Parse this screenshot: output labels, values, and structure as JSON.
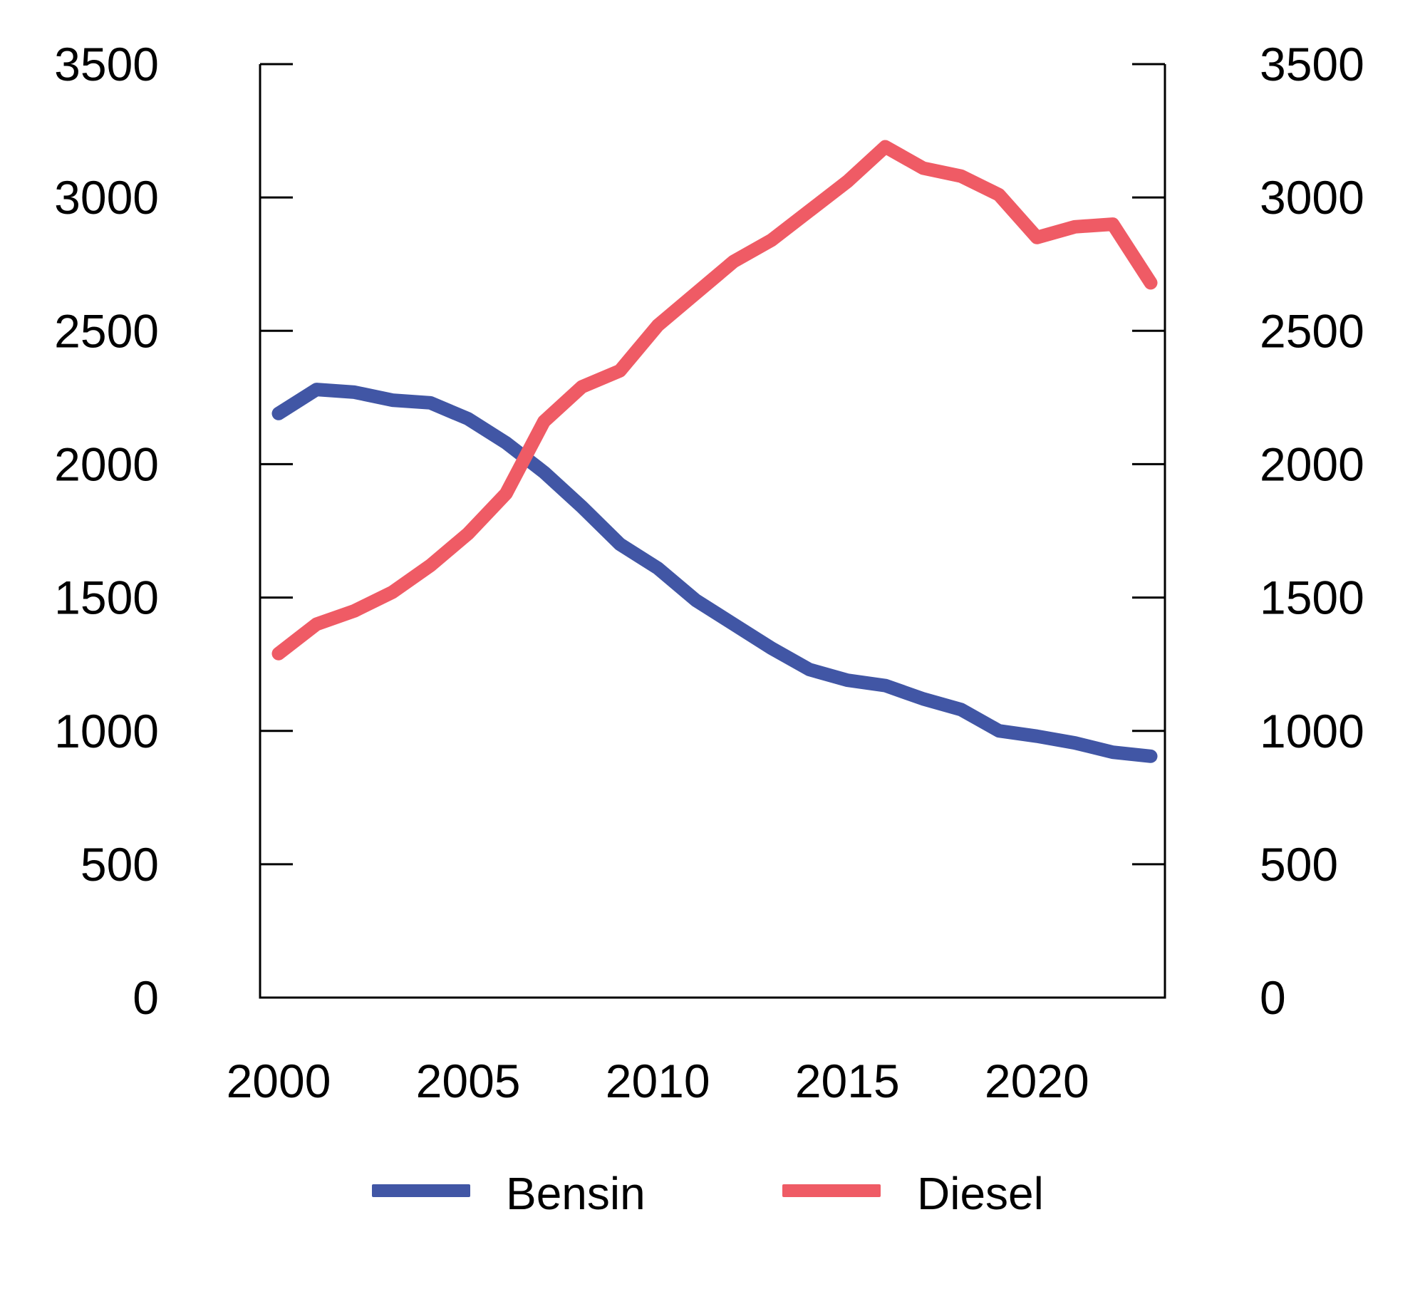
{
  "chart_data": {
    "type": "line",
    "title": "",
    "xlabel": "",
    "ylabel": "",
    "x": [
      2000,
      2001,
      2002,
      2003,
      2004,
      2005,
      2006,
      2007,
      2008,
      2009,
      2010,
      2011,
      2012,
      2013,
      2014,
      2015,
      2016,
      2017,
      2018,
      2019,
      2020,
      2021,
      2022,
      2023
    ],
    "series": [
      {
        "name": "Bensin",
        "color": "#4156a5",
        "values": [
          2190,
          2280,
          2270,
          2240,
          2230,
          2170,
          2080,
          1970,
          1840,
          1700,
          1610,
          1490,
          1400,
          1310,
          1230,
          1190,
          1170,
          1120,
          1080,
          1000,
          980,
          955,
          920,
          905
        ]
      },
      {
        "name": "Diesel",
        "color": "#ef5b65",
        "values": [
          1290,
          1400,
          1450,
          1520,
          1620,
          1740,
          1890,
          2160,
          2290,
          2350,
          2520,
          2640,
          2760,
          2840,
          2950,
          3060,
          3190,
          3110,
          3080,
          3010,
          2850,
          2890,
          2900,
          2680
        ]
      }
    ],
    "xlim": [
      2000,
      2023
    ],
    "ylim": [
      0,
      3500
    ],
    "y_ticks": [
      0,
      500,
      1000,
      1500,
      2000,
      2500,
      3000,
      3500
    ],
    "y_tick_labels": [
      "0",
      "500",
      "1000",
      "1500",
      "2000",
      "2500",
      "3000",
      "3500"
    ],
    "x_ticks": [
      2000,
      2005,
      2010,
      2015,
      2020
    ],
    "x_tick_labels": [
      "2000",
      "2005",
      "2010",
      "2015",
      "2020"
    ],
    "dual_y_axis": true,
    "grid": false,
    "legend_position": "bottom"
  },
  "legend": {
    "items": [
      {
        "label": "Bensin",
        "color": "#4156a5"
      },
      {
        "label": "Diesel",
        "color": "#ef5b65"
      }
    ]
  },
  "colors": {
    "background": "#ffffff",
    "axis": "#000000",
    "text": "#000000",
    "bensin": "#4156a5",
    "diesel": "#ef5b65"
  }
}
